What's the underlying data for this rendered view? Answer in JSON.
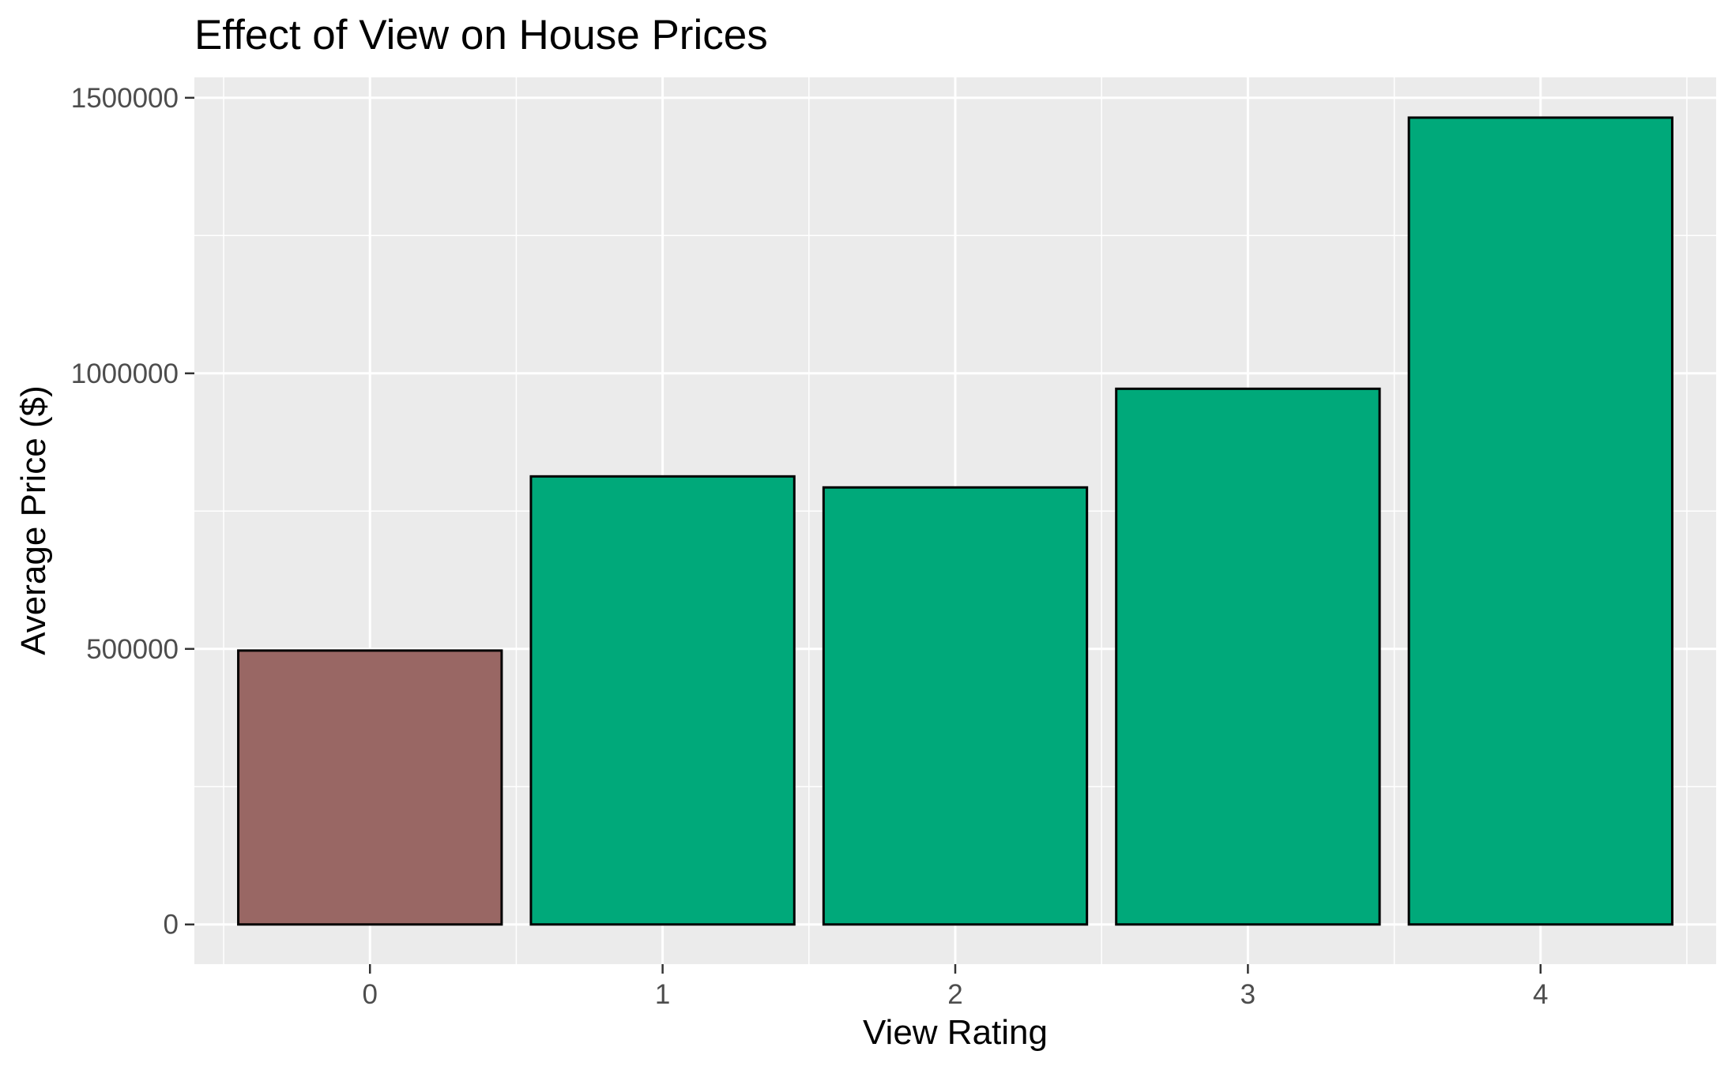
{
  "chart_data": {
    "type": "bar",
    "title": "Effect of View on House Prices",
    "xlabel": "View Rating",
    "ylabel": "Average Price ($)",
    "categories": [
      "0",
      "1",
      "2",
      "3",
      "4"
    ],
    "values": [
      497000,
      813000,
      793000,
      972000,
      1464000
    ],
    "bar_colors": [
      "#996764",
      "#00A97A",
      "#00A97A",
      "#00A97A",
      "#00A97A"
    ],
    "bar_outline_color": "#000000",
    "ylim": [
      -72000,
      1537000
    ],
    "yticks": [
      0,
      500000,
      1000000,
      1500000
    ],
    "ytick_labels": [
      "0",
      "500000",
      "1000000",
      "1500000"
    ],
    "grid": true,
    "panel_background": "#EBEBEB",
    "grid_color": "#FFFFFF",
    "legend": "none"
  }
}
